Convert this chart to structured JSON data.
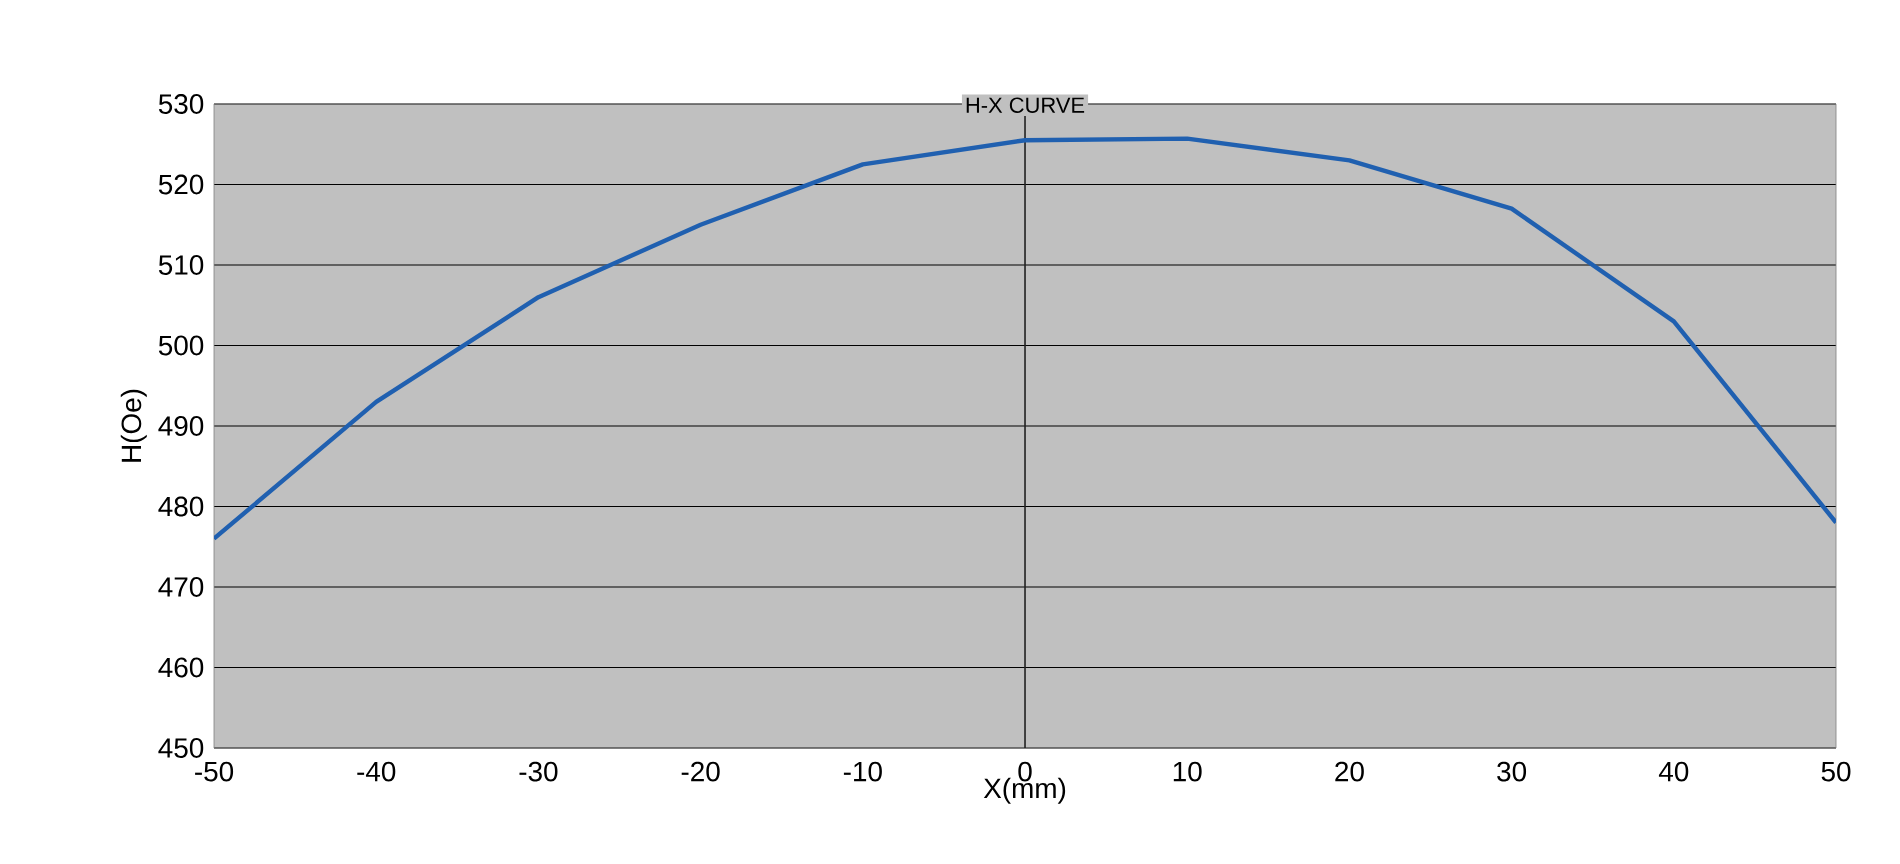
{
  "chart_data": {
    "type": "line",
    "title": "H-X CURVE",
    "xlabel": "X(mm)",
    "ylabel": "H(Oe)",
    "x": [
      -50,
      -40,
      -30,
      -20,
      -10,
      0,
      10,
      20,
      30,
      40,
      50
    ],
    "series": [
      {
        "color": "#2060b0",
        "values": [
          476,
          493,
          506,
          515,
          522.5,
          525.5,
          525.7,
          523,
          517,
          503,
          478
        ]
      }
    ],
    "xlim": [
      -50,
      50
    ],
    "xticks": [
      -50,
      -40,
      -30,
      -20,
      -10,
      0,
      10,
      20,
      30,
      40,
      50
    ],
    "ylim": [
      450,
      530
    ],
    "yticks": [
      450,
      460,
      470,
      480,
      490,
      500,
      510,
      520,
      530
    ],
    "grid": "y",
    "marker": "none",
    "line_style": "solid",
    "ref_lines": [
      {
        "axis": "x",
        "value": 0,
        "color": "#202020"
      }
    ]
  }
}
